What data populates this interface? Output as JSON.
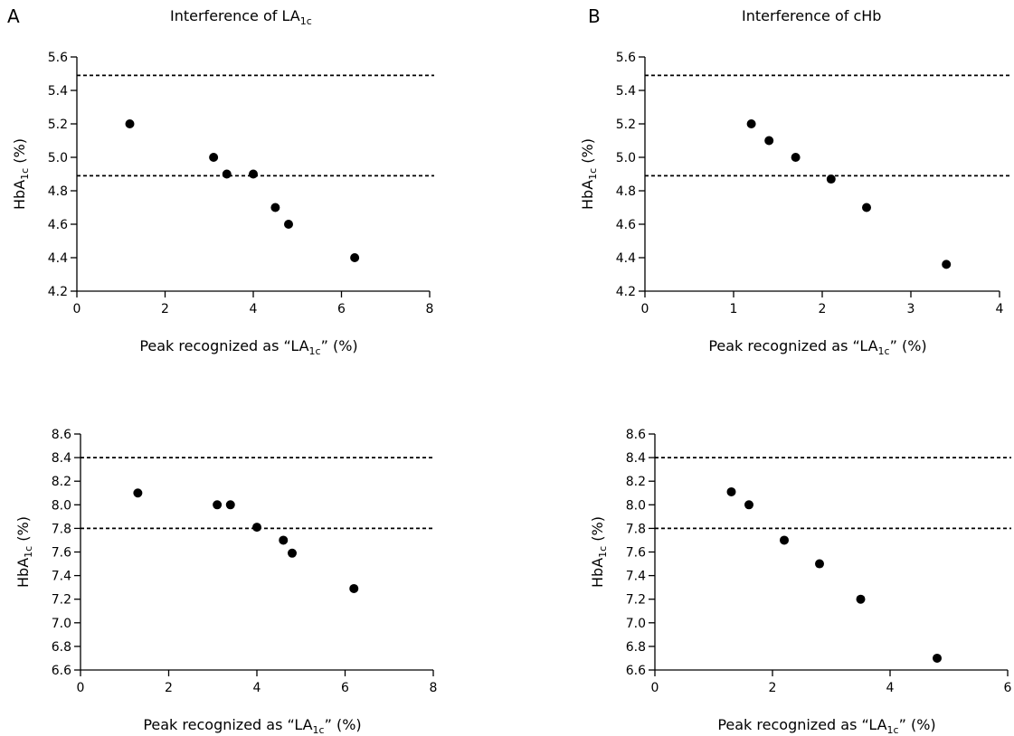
{
  "panels": {
    "a": {
      "letter": "A",
      "title_prefix": "Interference of LA",
      "title_sub": "1c"
    },
    "b": {
      "letter": "B",
      "title_prefix": "Interference of cHb",
      "title_sub": ""
    }
  },
  "chart_data": [
    {
      "type": "scatter",
      "xlabel": "Peak recognized as “LA1c” (%)",
      "ylabel": "HbA1c (%)",
      "xlim": [
        0,
        8
      ],
      "ylim": [
        4.2,
        5.6
      ],
      "xticks": [
        0,
        2,
        4,
        6,
        8
      ],
      "yticks": [
        4.2,
        4.4,
        4.6,
        4.8,
        5.0,
        5.2,
        5.4,
        5.6
      ],
      "ytick_decimals": 1,
      "reference_lines": [
        5.49,
        4.89
      ],
      "points": [
        {
          "x": 1.2,
          "y": 5.2
        },
        {
          "x": 3.1,
          "y": 5.0
        },
        {
          "x": 3.4,
          "y": 4.9
        },
        {
          "x": 4.0,
          "y": 4.9
        },
        {
          "x": 4.5,
          "y": 4.7
        },
        {
          "x": 4.8,
          "y": 4.6
        },
        {
          "x": 6.3,
          "y": 4.4
        }
      ]
    },
    {
      "type": "scatter",
      "xlabel": "Peak recognized as “LA1c” (%)",
      "ylabel": "HbA1c (%)",
      "xlim": [
        0,
        4
      ],
      "ylim": [
        4.2,
        5.6
      ],
      "xticks": [
        0,
        1,
        2,
        3,
        4
      ],
      "yticks": [
        4.2,
        4.4,
        4.6,
        4.8,
        5.0,
        5.2,
        5.4,
        5.6
      ],
      "ytick_decimals": 1,
      "reference_lines": [
        5.49,
        4.89
      ],
      "points": [
        {
          "x": 1.2,
          "y": 5.2
        },
        {
          "x": 1.4,
          "y": 5.1
        },
        {
          "x": 1.7,
          "y": 5.0
        },
        {
          "x": 2.1,
          "y": 4.87
        },
        {
          "x": 2.5,
          "y": 4.7
        },
        {
          "x": 3.4,
          "y": 4.36
        }
      ]
    },
    {
      "type": "scatter",
      "xlabel": "Peak recognized as “LA1c” (%)",
      "ylabel": "HbA1c (%)",
      "xlim": [
        0,
        8
      ],
      "ylim": [
        6.6,
        8.6
      ],
      "xticks": [
        0,
        2,
        4,
        6,
        8
      ],
      "yticks": [
        6.6,
        6.8,
        7.0,
        7.2,
        7.4,
        7.6,
        7.8,
        8.0,
        8.2,
        8.4,
        8.6
      ],
      "ytick_decimals": 1,
      "reference_lines": [
        8.4,
        7.8
      ],
      "points": [
        {
          "x": 1.3,
          "y": 8.1
        },
        {
          "x": 3.1,
          "y": 8.0
        },
        {
          "x": 3.4,
          "y": 8.0
        },
        {
          "x": 4.0,
          "y": 7.81
        },
        {
          "x": 4.6,
          "y": 7.7
        },
        {
          "x": 4.8,
          "y": 7.59
        },
        {
          "x": 6.2,
          "y": 7.29
        }
      ]
    },
    {
      "type": "scatter",
      "xlabel": "Peak recognized as “LA1c” (%)",
      "ylabel": "HbA1c (%)",
      "xlim": [
        0,
        6
      ],
      "ylim": [
        6.6,
        8.6
      ],
      "xticks": [
        0,
        2,
        4,
        6
      ],
      "yticks": [
        6.6,
        6.8,
        7.0,
        7.2,
        7.4,
        7.6,
        7.8,
        8.0,
        8.2,
        8.4,
        8.6
      ],
      "ytick_decimals": 1,
      "reference_lines": [
        8.4,
        7.8
      ],
      "points": [
        {
          "x": 1.3,
          "y": 8.11
        },
        {
          "x": 1.6,
          "y": 8.0
        },
        {
          "x": 2.2,
          "y": 7.7
        },
        {
          "x": 2.8,
          "y": 7.5
        },
        {
          "x": 3.5,
          "y": 7.2
        },
        {
          "x": 4.8,
          "y": 6.7
        }
      ]
    }
  ]
}
